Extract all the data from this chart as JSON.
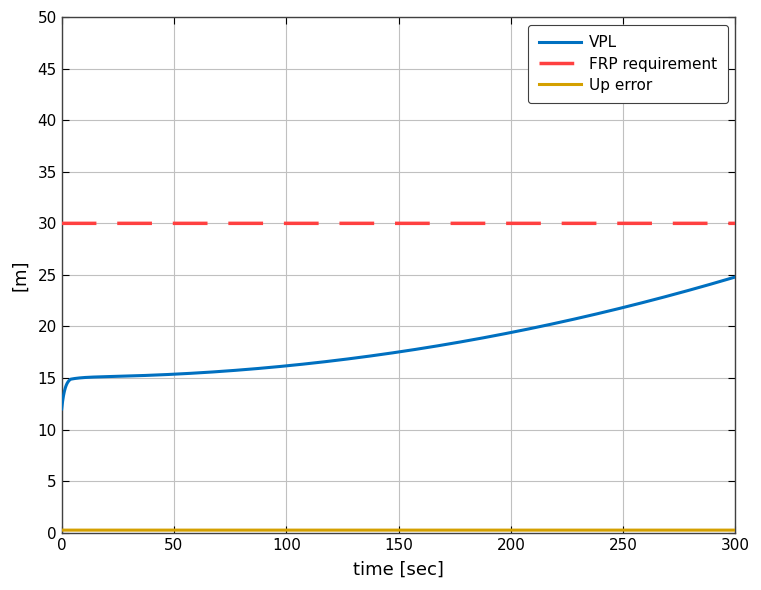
{
  "xlim": [
    0,
    300
  ],
  "ylim": [
    0,
    50
  ],
  "xticks": [
    0,
    50,
    100,
    150,
    200,
    250,
    300
  ],
  "yticks": [
    0,
    5,
    10,
    15,
    20,
    25,
    30,
    35,
    40,
    45,
    50
  ],
  "xlabel": "time [sec]",
  "ylabel": "[m]",
  "frp_value": 30,
  "up_error_value": 0.25,
  "vpl_start": 12.0,
  "vpl_quick": 15.1,
  "vpl_end": 24.8,
  "line_color_vpl": "#0070C0",
  "line_color_frp": "#FF4040",
  "line_color_up": "#D4A000",
  "legend_labels": [
    "VPL",
    "FRP requirement",
    "Up error"
  ],
  "background_color": "#ffffff",
  "grid_color": "#c0c0c0",
  "figure_edge_color": "#808080"
}
